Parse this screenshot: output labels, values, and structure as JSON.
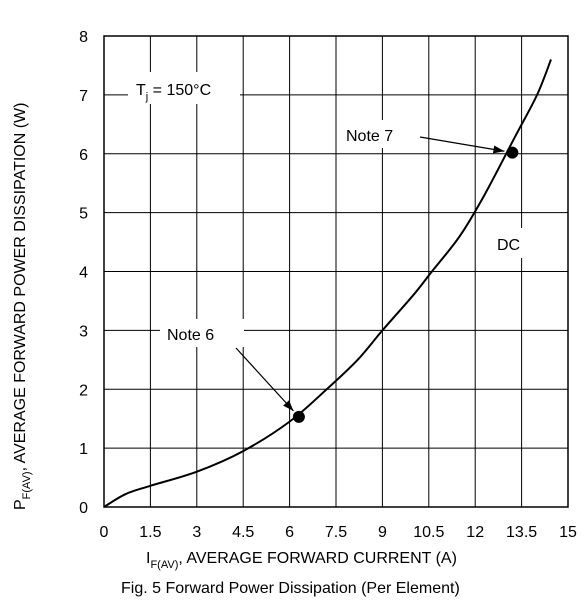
{
  "chart_data": {
    "type": "line",
    "xlim": [
      0,
      15
    ],
    "ylim": [
      0,
      8
    ],
    "x_ticks": [
      "0",
      "1.5",
      "3",
      "4.5",
      "6",
      "7.5",
      "9",
      "10.5",
      "12",
      "13.5",
      "15"
    ],
    "y_ticks": [
      "0",
      "1",
      "2",
      "3",
      "4",
      "5",
      "6",
      "7",
      "8"
    ],
    "grid": true,
    "xlabel": {
      "prefix": "I",
      "subscript": "F(AV)",
      "suffix": ", AVERAGE FORWARD CURRENT (A)"
    },
    "ylabel": {
      "prefix": "P",
      "subscript": "F(AV)",
      "suffix": ", AVERAGE FORWARD POWER DISSIPATION (W)"
    },
    "caption": "Fig. 5  Forward Power Dissipation (Per Element)",
    "condition": {
      "prefix": "T",
      "subscript": "j",
      "suffix": " = 150°C"
    },
    "series": [
      {
        "label": "DC",
        "x": [
          0,
          0.7,
          1.5,
          3,
          4.5,
          6,
          7.2,
          8.2,
          9,
          10,
          10.6,
          11.5,
          12.3,
          13.3,
          14,
          14.45
        ],
        "y": [
          0,
          0.22,
          0.36,
          0.6,
          0.95,
          1.45,
          2.0,
          2.5,
          3.0,
          3.6,
          4.0,
          4.6,
          5.3,
          6.3,
          7.0,
          7.6
        ]
      }
    ],
    "annotations": [
      {
        "label": "Note 6",
        "x": 6.3,
        "y": 1.53
      },
      {
        "label": "Note 7",
        "x": 13.2,
        "y": 6.02
      }
    ]
  }
}
